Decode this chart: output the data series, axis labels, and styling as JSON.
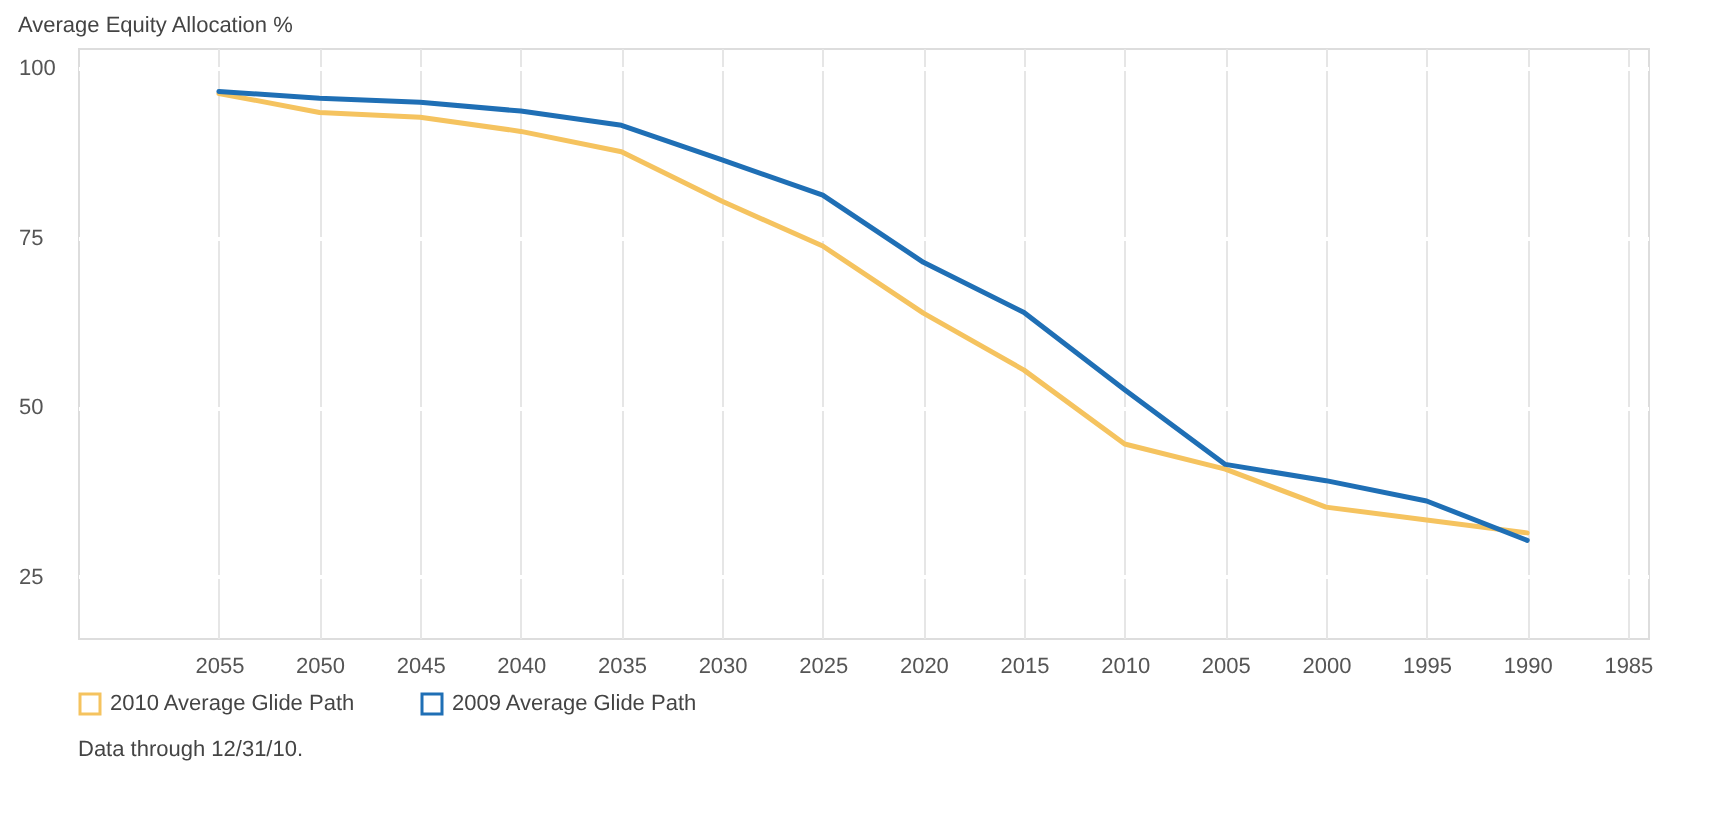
{
  "chart_data": {
    "type": "line",
    "title": "Average Equity Allocation %",
    "x": [
      2055,
      2050,
      2045,
      2040,
      2035,
      2030,
      2025,
      2020,
      2015,
      2010,
      2005,
      2000,
      1995,
      1990
    ],
    "series": [
      {
        "name": "2010 Average Glide Path",
        "color": "#f5c35f",
        "values": [
          96.3,
          93.5,
          92.8,
          90.7,
          87.7,
          80.4,
          73.8,
          63.9,
          55.5,
          44.6,
          40.9,
          35.3,
          33.4,
          31.5
        ]
      },
      {
        "name": "2009 Average Glide Path",
        "color": "#1f6fb5",
        "values": [
          96.6,
          95.6,
          95,
          93.7,
          91.6,
          86.5,
          81.3,
          71.4,
          64,
          52.6,
          41.6,
          39.2,
          36.2,
          30.4
        ]
      }
    ],
    "xlim": [
      2062,
      1984
    ],
    "xticks": [
      2055,
      2050,
      2045,
      2040,
      2035,
      2030,
      2025,
      2020,
      2015,
      2010,
      2005,
      2000,
      1995,
      1990,
      1985
    ],
    "ylim": [
      16,
      103
    ],
    "yticks": [
      25,
      50,
      75,
      100
    ],
    "grid": true,
    "legend": "bottom left",
    "line_style": "solid",
    "marker": "none",
    "annotations": [
      "Data through 12/31/10."
    ]
  }
}
